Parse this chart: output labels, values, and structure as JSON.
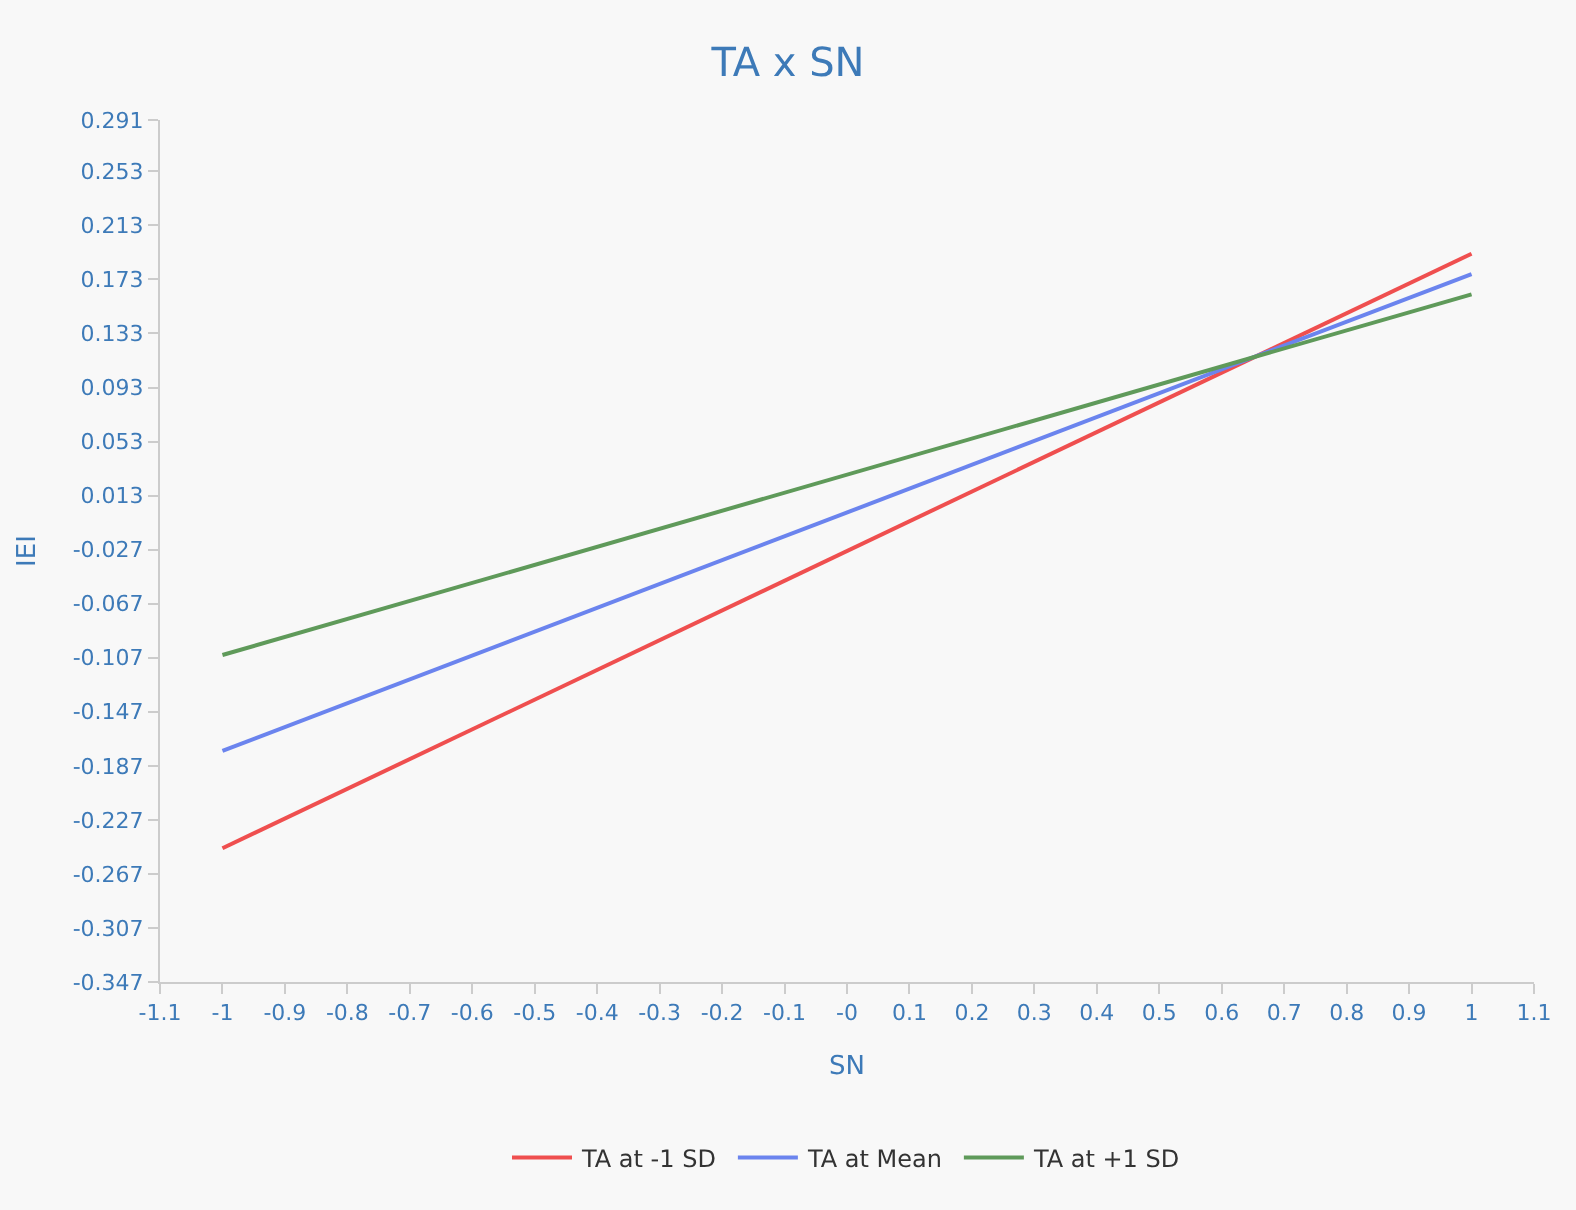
{
  "chart_data": {
    "type": "line",
    "title": "TA x SN",
    "xlabel": "SN",
    "ylabel": "IEI",
    "x": [
      -1,
      1
    ],
    "series": [
      {
        "name": "TA at -1 SD",
        "color": "#ef4f4f",
        "values": [
          -0.248,
          0.192
        ]
      },
      {
        "name": "TA at Mean",
        "color": "#6b84ee",
        "values": [
          -0.176,
          0.177
        ]
      },
      {
        "name": "TA at +1 SD",
        "color": "#5f9a5a",
        "values": [
          -0.105,
          0.162
        ]
      }
    ],
    "xlim": [
      -1.1,
      1.1
    ],
    "xticks": [
      -1.1,
      -1,
      -0.9,
      -0.8,
      -0.7,
      -0.6,
      -0.5,
      -0.4,
      -0.3,
      -0.2,
      -0.1,
      {
        "value": 0,
        "label": "-0"
      },
      0.1,
      0.2,
      0.3,
      0.4,
      0.5,
      0.6,
      0.7,
      0.8,
      0.9,
      1,
      1.1
    ],
    "ylim": [
      -0.347,
      0.291
    ],
    "yticks": [
      -0.347,
      -0.307,
      -0.267,
      -0.227,
      -0.187,
      -0.147,
      -0.107,
      -0.067,
      -0.027,
      0.013,
      0.053,
      0.093,
      0.133,
      0.173,
      0.213,
      0.253,
      0.291
    ],
    "grid": false,
    "legend": "bottom",
    "marker": "none",
    "line_style": "solid"
  }
}
